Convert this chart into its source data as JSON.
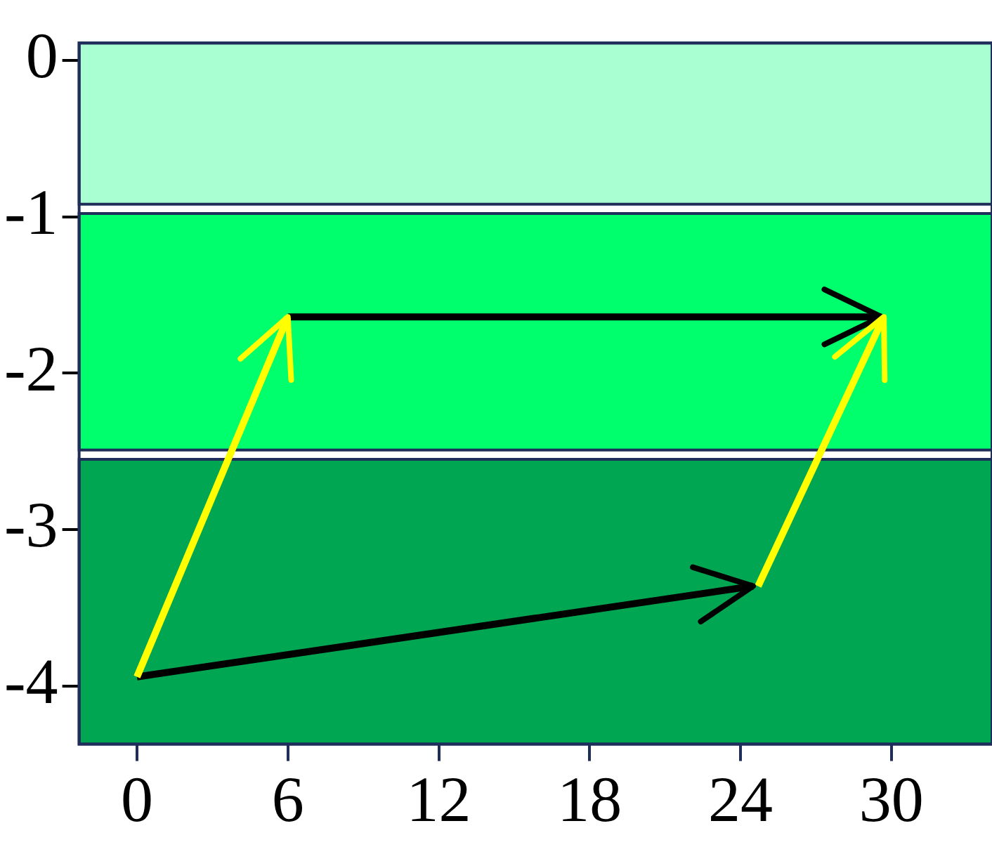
{
  "chart_data": {
    "type": "line",
    "xlim": [
      -2.3,
      34
    ],
    "ylim": [
      -4.37,
      0.11
    ],
    "xticks": [
      0,
      6,
      12,
      18,
      24,
      30
    ],
    "yticks": [
      0,
      -1,
      -2,
      -3,
      -4
    ],
    "grid": false,
    "legend": false,
    "marker": "none",
    "line_style": "solid",
    "bands": [
      {
        "axis": "y",
        "from": -0.92,
        "to": 0.11,
        "color": "#aaffd2"
      },
      {
        "axis": "y",
        "from": -2.49,
        "to": -0.98,
        "color": "#00ff6c"
      },
      {
        "axis": "y",
        "from": -4.37,
        "to": -2.55,
        "color": "#00a651"
      }
    ],
    "series": [
      {
        "color": "#ffff00",
        "x": [
          0,
          6
        ],
        "values": [
          -3.94,
          -1.64
        ]
      },
      {
        "color": "#000000",
        "x": [
          6,
          29.6
        ],
        "values": [
          -1.64,
          -1.64
        ]
      },
      {
        "color": "#ffff00",
        "x": [
          24.7,
          29.7
        ],
        "values": [
          -3.36,
          -1.64
        ]
      },
      {
        "color": "#000000",
        "x": [
          0,
          24.5
        ],
        "values": [
          -3.94,
          -3.36
        ]
      }
    ]
  }
}
